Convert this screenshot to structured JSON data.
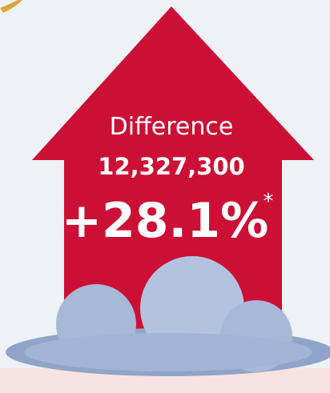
{
  "label": "Difference",
  "amount": "12,327,300",
  "percent": "+28.1%",
  "footnote_mark": "*"
}
